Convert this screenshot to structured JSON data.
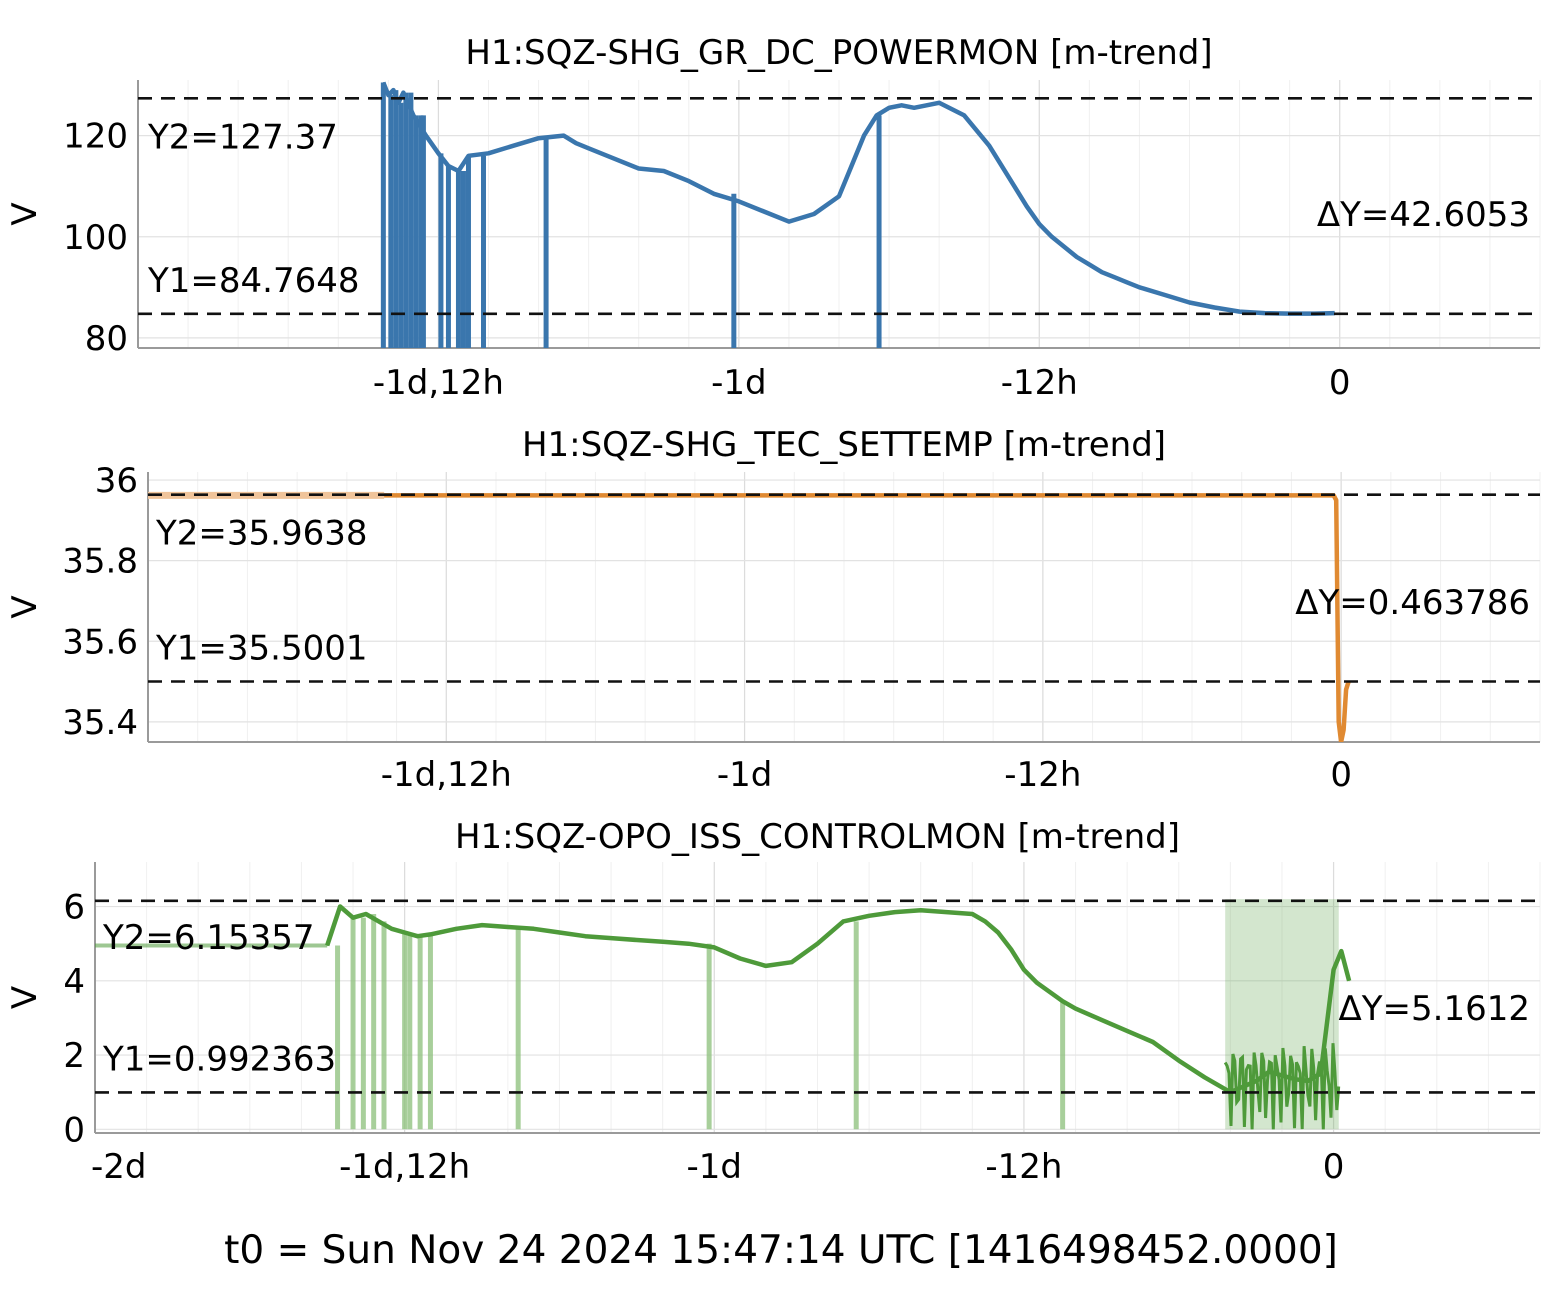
{
  "footer": "t0 = Sun Nov 24 2024 15:47:14 UTC [1416498452.0000]",
  "chart_data": [
    {
      "type": "line",
      "title": "H1:SQZ-SHG_GR_DC_POWERMON [m-trend]",
      "ylabel": "V",
      "color": "#3a76ad",
      "xlim": [
        -48,
        8
      ],
      "ylim": [
        78,
        131
      ],
      "x_ticks": [
        {
          "v": -36,
          "label": "-1d,12h"
        },
        {
          "v": -24,
          "label": "-1d"
        },
        {
          "v": -12,
          "label": "-12h"
        },
        {
          "v": 0,
          "label": "0"
        }
      ],
      "y_ticks": [
        {
          "v": 80,
          "label": "80"
        },
        {
          "v": 100,
          "label": "100"
        },
        {
          "v": 120,
          "label": "120"
        }
      ],
      "cursors": {
        "y1": 84.7648,
        "y2": 127.37,
        "y1_label": "Y1=84.7648",
        "y2_label": "Y2=127.37",
        "dy_label": "ΔY=42.6053"
      },
      "x": [
        -38.2,
        -38.0,
        -37.8,
        -37.6,
        -37.4,
        -37.0,
        -36.5,
        -36.0,
        -35.6,
        -35.2,
        -34.8,
        -34.0,
        -33.0,
        -32.0,
        -31.0,
        -30.5,
        -30.0,
        -29.0,
        -28.0,
        -27.0,
        -26.0,
        -25.0,
        -24.0,
        -23.0,
        -22.0,
        -21.0,
        -20.0,
        -19.5,
        -19.0,
        -18.5,
        -18.0,
        -17.5,
        -17.0,
        -16.0,
        -15.0,
        -14.0,
        -13.0,
        -12.5,
        -12.0,
        -11.5,
        -11.0,
        -10.5,
        -10.0,
        -9.5,
        -9.0,
        -8.5,
        -8.0,
        -7.0,
        -6.0,
        -5.0,
        -4.0,
        -3.0,
        -2.0,
        -1.0,
        -0.2
      ],
      "y": [
        130.5,
        128.0,
        129.0,
        126.5,
        128.5,
        124.0,
        120.0,
        116.5,
        114.0,
        113.0,
        116.0,
        116.5,
        118.0,
        119.5,
        120.0,
        118.5,
        117.5,
        115.5,
        113.5,
        113.0,
        111.0,
        108.5,
        107.0,
        105.0,
        103.0,
        104.5,
        108.0,
        114.0,
        120.0,
        124.0,
        125.5,
        126.0,
        125.5,
        126.5,
        124.0,
        118.0,
        110.0,
        106.0,
        102.5,
        100.0,
        98.0,
        96.0,
        94.5,
        93.0,
        92.0,
        91.0,
        90.0,
        88.5,
        87.0,
        86.0,
        85.2,
        84.9,
        84.8,
        84.8,
        84.9
      ],
      "spikes": [
        -38.2,
        -37.9,
        -37.7,
        -37.5,
        -37.3,
        -37.1,
        -36.9,
        -36.7,
        -36.6,
        -35.9,
        -35.6,
        -35.2,
        -35.0,
        -34.8,
        -34.2,
        -31.7,
        -24.2,
        -18.4
      ],
      "spike_to": 78
    },
    {
      "type": "line",
      "title": "H1:SQZ-SHG_TEC_SETTEMP [m-trend]",
      "ylabel": "V",
      "color": "#e08a32",
      "xlim": [
        -48,
        8
      ],
      "ylim": [
        35.35,
        36.02
      ],
      "x_ticks": [
        {
          "v": -36,
          "label": "-1d,12h"
        },
        {
          "v": -24,
          "label": "-1d"
        },
        {
          "v": -12,
          "label": "-12h"
        },
        {
          "v": 0,
          "label": "0"
        }
      ],
      "y_ticks": [
        {
          "v": 35.4,
          "label": "35.4"
        },
        {
          "v": 35.6,
          "label": "35.6"
        },
        {
          "v": 35.8,
          "label": "35.8"
        },
        {
          "v": 36,
          "label": "36"
        }
      ],
      "cursors": {
        "y1": 35.5001,
        "y2": 35.9638,
        "y1_label": "Y1=35.5001",
        "y2_label": "Y2=35.9638",
        "dy_label": "ΔY=0.463786"
      },
      "x": [
        -38.5,
        -0.3,
        -0.2,
        -0.1,
        0.0,
        0.1,
        0.2,
        0.3
      ],
      "y": [
        35.962,
        35.962,
        35.95,
        35.4,
        35.35,
        35.38,
        35.48,
        35.5
      ]
    },
    {
      "type": "line",
      "title": "H1:SQZ-OPO_ISS_CONTROLMON [m-trend]",
      "ylabel": "V",
      "color": "#4e9a3a",
      "xlim": [
        -48,
        8
      ],
      "ylim": [
        -0.1,
        7.2
      ],
      "x_ticks": [
        {
          "v": -48,
          "label": "-2d"
        },
        {
          "v": -36,
          "label": "-1d,12h"
        },
        {
          "v": -24,
          "label": "-1d"
        },
        {
          "v": -12,
          "label": "-12h"
        },
        {
          "v": 0,
          "label": "0"
        }
      ],
      "y_ticks": [
        {
          "v": 0,
          "label": "0"
        },
        {
          "v": 2,
          "label": "2"
        },
        {
          "v": 4,
          "label": "4"
        },
        {
          "v": 6,
          "label": "6"
        }
      ],
      "cursors": {
        "y1": 0.992363,
        "y2": 6.15357,
        "y1_label": "Y1=0.992363",
        "y2_label": "Y2=6.15357",
        "dy_label": "ΔY=5.1612"
      },
      "x": [
        -39.0,
        -38.5,
        -38.0,
        -37.5,
        -37.0,
        -36.5,
        -36.0,
        -35.5,
        -35.0,
        -34.0,
        -33.0,
        -32.0,
        -31.0,
        -30.0,
        -29.0,
        -28.0,
        -27.0,
        -26.0,
        -25.0,
        -24.0,
        -23.0,
        -22.0,
        -21.0,
        -20.0,
        -19.0,
        -18.0,
        -17.0,
        -16.0,
        -15.0,
        -14.0,
        -13.5,
        -13.0,
        -12.5,
        -12.0,
        -11.5,
        -11.0,
        -10.5,
        -10.0,
        -9.0,
        -8.0,
        -7.0,
        -6.0,
        -5.0,
        -4.0,
        -3.5,
        -3.0,
        -2.5,
        -2.0,
        -1.5,
        -1.0,
        -0.5,
        0.0,
        0.3,
        0.6
      ],
      "y": [
        4.95,
        6.0,
        5.7,
        5.8,
        5.6,
        5.4,
        5.3,
        5.2,
        5.25,
        5.4,
        5.5,
        5.45,
        5.4,
        5.3,
        5.2,
        5.15,
        5.1,
        5.05,
        5.0,
        4.9,
        4.6,
        4.4,
        4.5,
        5.0,
        5.6,
        5.75,
        5.85,
        5.9,
        5.85,
        5.8,
        5.6,
        5.3,
        4.85,
        4.3,
        3.95,
        3.7,
        3.45,
        3.25,
        2.95,
        2.65,
        2.35,
        1.85,
        1.4,
        1.0,
        1.15,
        1.3,
        1.55,
        1.45,
        1.35,
        1.3,
        1.5,
        4.3,
        4.8,
        4.0
      ],
      "spikes": [
        -38.6,
        -38.0,
        -37.6,
        -37.2,
        -36.8,
        -36.0,
        -35.8,
        -35.4,
        -35.0,
        -31.6,
        -24.2,
        -18.5,
        -10.5
      ],
      "spike_to": 0,
      "noise_band": [
        -4.2,
        0.2
      ]
    }
  ]
}
